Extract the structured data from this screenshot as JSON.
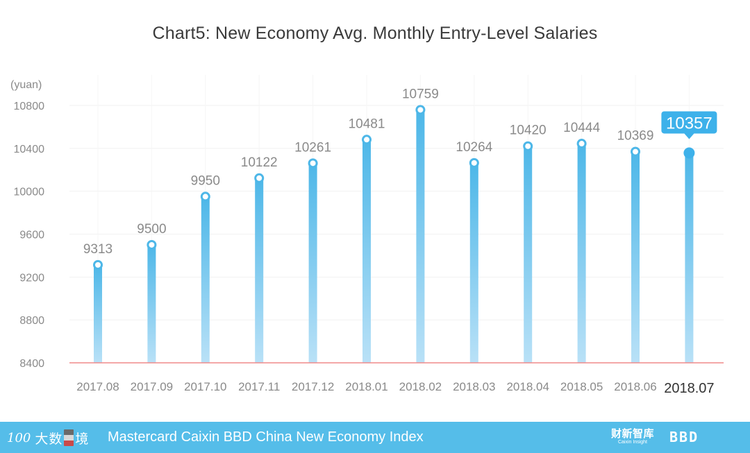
{
  "chart_data": {
    "type": "bar",
    "title": "Chart5:  New Economy Avg. Monthly Entry-Level Salaries",
    "ylabel": "(yuan)",
    "xlabel": "",
    "ylim": [
      8400,
      10800
    ],
    "yticks": [
      8400,
      8800,
      9200,
      9600,
      10000,
      10400,
      10800
    ],
    "categories": [
      "2017.08",
      "2017.09",
      "2017.10",
      "2017.11",
      "2017.12",
      "2018.01",
      "2018.02",
      "2018.03",
      "2018.04",
      "2018.05",
      "2018.06",
      "2018.07"
    ],
    "values": [
      9313,
      9500,
      9950,
      10122,
      10261,
      10481,
      10759,
      10264,
      10420,
      10444,
      10369,
      10357
    ],
    "highlight_category": "2018.07",
    "colors": {
      "bar_top": "#4db7e8",
      "bar_bottom": "#b9e1f7",
      "baseline": "#f08a8a",
      "grid": "#f1f1f1",
      "label": "#8a8a8a",
      "highlight_label": "#333333",
      "callout": "#3db1ea"
    }
  },
  "footer": {
    "brand_mark": "100",
    "brand_cn_1": "大数",
    "brand_cn_2": "境",
    "index_name": "Mastercard Caixin BBD China New Economy Index",
    "caixin_cn": "财新智库",
    "caixin_en": "Caixin Insight",
    "bbd_logo": "BBD",
    "background": "#55bde9"
  }
}
